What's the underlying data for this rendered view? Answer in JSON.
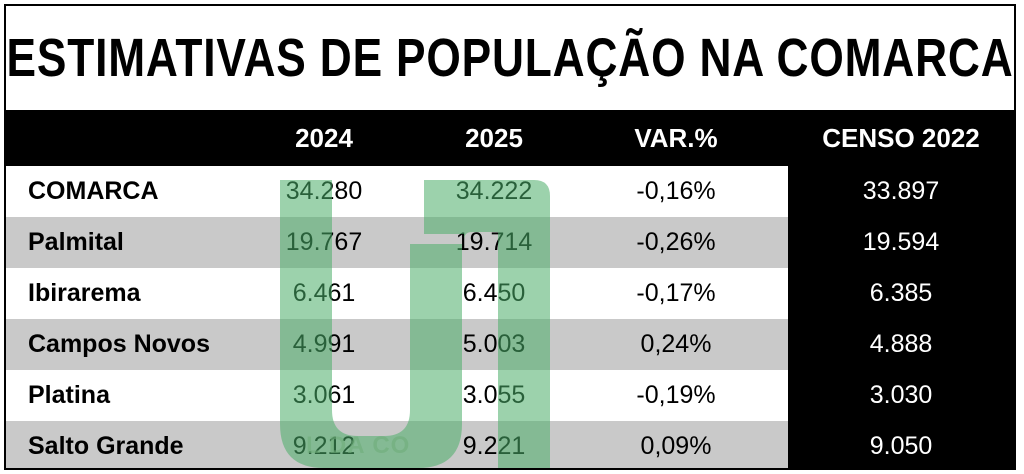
{
  "title": "ESTIMATIVAS DE POPULAÇÃO NA COMARCA",
  "headers": [
    "2024",
    "2025",
    "VAR.%",
    "CENSO 2022"
  ],
  "rows": [
    {
      "name": "COMARCA",
      "y2024": "34.280",
      "y2025": "34.222",
      "var": "-0,16%",
      "censo": "33.897"
    },
    {
      "name": "Palmital",
      "y2024": "19.767",
      "y2025": "19.714",
      "var": "-0,26%",
      "censo": "19.594"
    },
    {
      "name": "Ibirarema",
      "y2024": "6.461",
      "y2025": "6.450",
      "var": "-0,17%",
      "censo": "6.385"
    },
    {
      "name": "Campos Novos",
      "y2024": "4.991",
      "y2025": "5.003",
      "var": "0,24%",
      "censo": "4.888"
    },
    {
      "name": "Platina",
      "y2024": "3.061",
      "y2025": "3.055",
      "var": "-0,19%",
      "censo": "3.030"
    },
    {
      "name": "Salto Grande",
      "y2024": "9.212",
      "y2025": "9.221",
      "var": "0,09%",
      "censo": "9.050"
    }
  ],
  "watermark": {
    "text": "L DA CO",
    "color": "#4caf6a"
  },
  "colors": {
    "header_bg": "#000000",
    "stripe": "#c9c9c9",
    "censo_bg": "#000000"
  }
}
